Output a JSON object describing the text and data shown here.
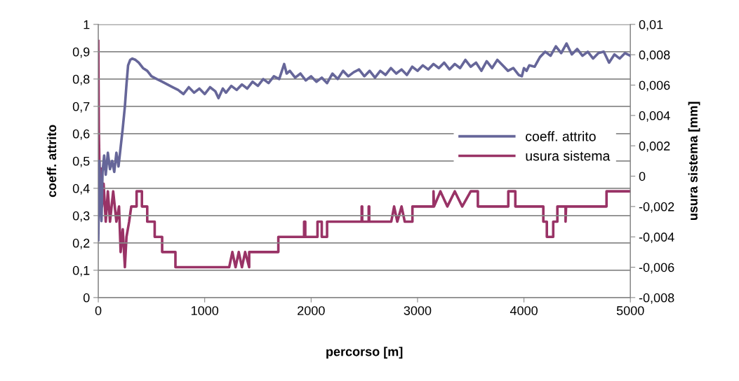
{
  "chart_data": {
    "type": "line",
    "xlabel": "percorso [m]",
    "ylabel": "coeff. attrito",
    "y2label": "usura sistema [mm]",
    "xlim": [
      0,
      5000
    ],
    "xticks": [
      0,
      1000,
      2000,
      3000,
      4000,
      5000
    ],
    "ylim": [
      0,
      1
    ],
    "yticks": [
      {
        "value": 0,
        "label": "0"
      },
      {
        "value": 0.1,
        "label": "0,1"
      },
      {
        "value": 0.2,
        "label": "0,2"
      },
      {
        "value": 0.3,
        "label": "0,3"
      },
      {
        "value": 0.4,
        "label": "0,4"
      },
      {
        "value": 0.5,
        "label": "0,5"
      },
      {
        "value": 0.6,
        "label": "0,6"
      },
      {
        "value": 0.7,
        "label": "0,7"
      },
      {
        "value": 0.8,
        "label": "0,8"
      },
      {
        "value": 0.9,
        "label": "0,9"
      },
      {
        "value": 1,
        "label": "1"
      }
    ],
    "y2lim": [
      -0.008,
      0.01
    ],
    "y2ticks": [
      {
        "value": -0.008,
        "label": "-0,008"
      },
      {
        "value": -0.006,
        "label": "-0,006"
      },
      {
        "value": -0.004,
        "label": "-0,004"
      },
      {
        "value": -0.002,
        "label": "-0,002"
      },
      {
        "value": 0,
        "label": "0"
      },
      {
        "value": 0.002,
        "label": "0,002"
      },
      {
        "value": 0.004,
        "label": "0,004"
      },
      {
        "value": 0.006,
        "label": "0,006"
      },
      {
        "value": 0.008,
        "label": "0,008"
      },
      {
        "value": 0.01,
        "label": "0,01"
      }
    ],
    "grid": "y",
    "legend": "right",
    "line_style": "solid",
    "marker": "none",
    "series": [
      {
        "name": "coeff. attrito",
        "color": "#666699",
        "x": [
          0,
          10,
          20,
          30,
          40,
          55,
          70,
          90,
          110,
          130,
          150,
          170,
          190,
          210,
          230,
          250,
          265,
          280,
          300,
          320,
          350,
          380,
          420,
          460,
          500,
          550,
          600,
          650,
          700,
          750,
          800,
          850,
          900,
          950,
          1000,
          1050,
          1100,
          1130,
          1170,
          1200,
          1250,
          1300,
          1350,
          1400,
          1450,
          1500,
          1550,
          1600,
          1650,
          1700,
          1747,
          1770,
          1800,
          1850,
          1900,
          1950,
          2000,
          2050,
          2100,
          2150,
          2200,
          2250,
          2300,
          2350,
          2400,
          2450,
          2500,
          2550,
          2600,
          2650,
          2700,
          2750,
          2800,
          2850,
          2900,
          2950,
          3000,
          3050,
          3100,
          3150,
          3200,
          3250,
          3300,
          3350,
          3400,
          3450,
          3500,
          3550,
          3600,
          3650,
          3700,
          3750,
          3800,
          3850,
          3900,
          3950,
          3980,
          4000,
          4025,
          4050,
          4100,
          4150,
          4200,
          4250,
          4300,
          4350,
          4400,
          4450,
          4500,
          4550,
          4600,
          4650,
          4700,
          4750,
          4800,
          4850,
          4900,
          4950,
          5000
        ],
        "values": [
          0.21,
          0.5,
          0.35,
          0.28,
          0.46,
          0.52,
          0.45,
          0.53,
          0.47,
          0.5,
          0.46,
          0.53,
          0.48,
          0.55,
          0.62,
          0.7,
          0.78,
          0.85,
          0.87,
          0.875,
          0.87,
          0.86,
          0.84,
          0.83,
          0.81,
          0.8,
          0.79,
          0.78,
          0.77,
          0.76,
          0.745,
          0.77,
          0.75,
          0.765,
          0.745,
          0.77,
          0.755,
          0.73,
          0.765,
          0.75,
          0.775,
          0.76,
          0.78,
          0.765,
          0.79,
          0.775,
          0.8,
          0.785,
          0.81,
          0.8,
          0.855,
          0.82,
          0.83,
          0.805,
          0.82,
          0.795,
          0.81,
          0.79,
          0.805,
          0.785,
          0.82,
          0.8,
          0.83,
          0.81,
          0.825,
          0.835,
          0.81,
          0.83,
          0.805,
          0.83,
          0.815,
          0.84,
          0.82,
          0.835,
          0.815,
          0.845,
          0.83,
          0.85,
          0.835,
          0.855,
          0.84,
          0.86,
          0.835,
          0.855,
          0.84,
          0.87,
          0.845,
          0.86,
          0.83,
          0.865,
          0.84,
          0.87,
          0.85,
          0.83,
          0.84,
          0.815,
          0.81,
          0.84,
          0.83,
          0.85,
          0.845,
          0.88,
          0.9,
          0.885,
          0.92,
          0.895,
          0.93,
          0.89,
          0.91,
          0.885,
          0.9,
          0.875,
          0.895,
          0.9,
          0.86,
          0.89,
          0.875,
          0.895,
          0.885
        ]
      },
      {
        "name": "usura sistema",
        "color": "#993366",
        "axis": "y2",
        "x": [
          0,
          5,
          15,
          25,
          35,
          50,
          70,
          90,
          110,
          140,
          170,
          195,
          210,
          230,
          250,
          265,
          290,
          310,
          360,
          360,
          410,
          410,
          460,
          460,
          530,
          530,
          600,
          600,
          725,
          725,
          1230,
          1260,
          1290,
          1320,
          1350,
          1380,
          1418,
          1418,
          1692,
          1692,
          1934,
          1934,
          1945,
          1945,
          2060,
          2060,
          2100,
          2100,
          2150,
          2150,
          2475,
          2475,
          2480,
          2480,
          2541,
          2541,
          2546,
          2546,
          2753,
          2780,
          2810,
          2850,
          2880,
          2952,
          2952,
          3150,
          3150,
          3155,
          3215,
          3280,
          3350,
          3420,
          3500,
          3567,
          3567,
          3853,
          3853,
          3919,
          3919,
          4182,
          4182,
          4215,
          4215,
          4275,
          4275,
          4314,
          4314,
          4391,
          4391,
          4396,
          4776,
          4776,
          5000
        ],
        "values": [
          0.0089,
          0.003,
          -0.001,
          0.0005,
          -0.002,
          -0.0005,
          -0.003,
          -0.001,
          -0.003,
          -0.001,
          -0.003,
          -0.002,
          -0.005,
          -0.0035,
          -0.006,
          -0.004,
          -0.003,
          -0.002,
          -0.002,
          -0.001,
          -0.001,
          -0.002,
          -0.002,
          -0.003,
          -0.003,
          -0.004,
          -0.004,
          -0.005,
          -0.005,
          -0.006,
          -0.006,
          -0.005,
          -0.006,
          -0.005,
          -0.006,
          -0.005,
          -0.006,
          -0.005,
          -0.005,
          -0.004,
          -0.004,
          -0.003,
          -0.003,
          -0.004,
          -0.004,
          -0.003,
          -0.003,
          -0.004,
          -0.004,
          -0.003,
          -0.003,
          -0.002,
          -0.002,
          -0.003,
          -0.003,
          -0.002,
          -0.002,
          -0.003,
          -0.003,
          -0.002,
          -0.003,
          -0.002,
          -0.003,
          -0.003,
          -0.002,
          -0.002,
          -0.001,
          -0.002,
          -0.001,
          -0.002,
          -0.001,
          -0.002,
          -0.001,
          -0.001,
          -0.002,
          -0.002,
          -0.001,
          -0.001,
          -0.002,
          -0.002,
          -0.003,
          -0.003,
          -0.004,
          -0.004,
          -0.003,
          -0.003,
          -0.002,
          -0.002,
          -0.003,
          -0.002,
          -0.002,
          -0.001,
          -0.001
        ]
      }
    ]
  }
}
